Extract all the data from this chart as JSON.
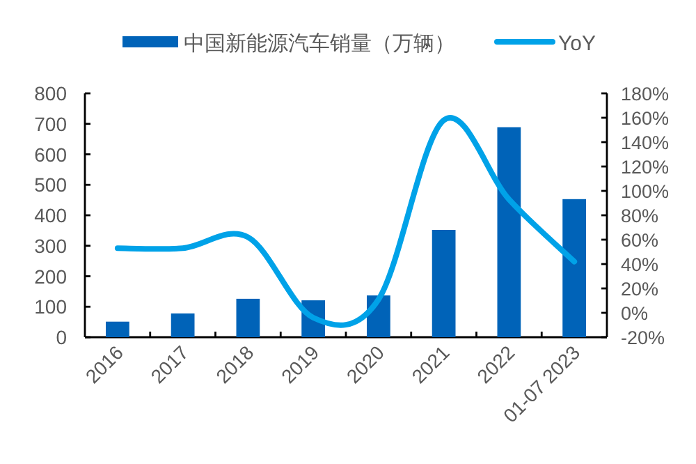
{
  "chart_data": {
    "type": "bar",
    "categories": [
      "2016",
      "2017",
      "2018",
      "2019",
      "2020",
      "2021",
      "2022",
      "01-07 2023"
    ],
    "series": [
      {
        "name": "中国新能源汽车销量（万辆）",
        "color": "#0063b8",
        "values": [
          51,
          78,
          126,
          121,
          137,
          352,
          689,
          453
        ]
      },
      {
        "name": "YoY",
        "type": "line",
        "axis": "y2",
        "color": "#00a2e8",
        "values": [
          53,
          53,
          62,
          -4,
          11,
          158,
          93,
          42
        ]
      }
    ],
    "ylim": [
      0,
      800
    ],
    "yticks": [
      0,
      100,
      200,
      300,
      400,
      500,
      600,
      700,
      800
    ],
    "y2lim": [
      -20,
      180
    ],
    "y2ticks": [
      {
        "value": -20,
        "label": "-20%"
      },
      {
        "value": 0,
        "label": "0%"
      },
      {
        "value": 20,
        "label": "20%"
      },
      {
        "value": 40,
        "label": "40%"
      },
      {
        "value": 60,
        "label": "60%"
      },
      {
        "value": 80,
        "label": "80%"
      },
      {
        "value": 100,
        "label": "100%"
      },
      {
        "value": 120,
        "label": "120%"
      },
      {
        "value": 140,
        "label": "140%"
      },
      {
        "value": 160,
        "label": "160%"
      },
      {
        "value": 180,
        "label": "180%"
      }
    ],
    "legend": "top",
    "grid": false,
    "marker": "none",
    "line_style": "solid"
  }
}
